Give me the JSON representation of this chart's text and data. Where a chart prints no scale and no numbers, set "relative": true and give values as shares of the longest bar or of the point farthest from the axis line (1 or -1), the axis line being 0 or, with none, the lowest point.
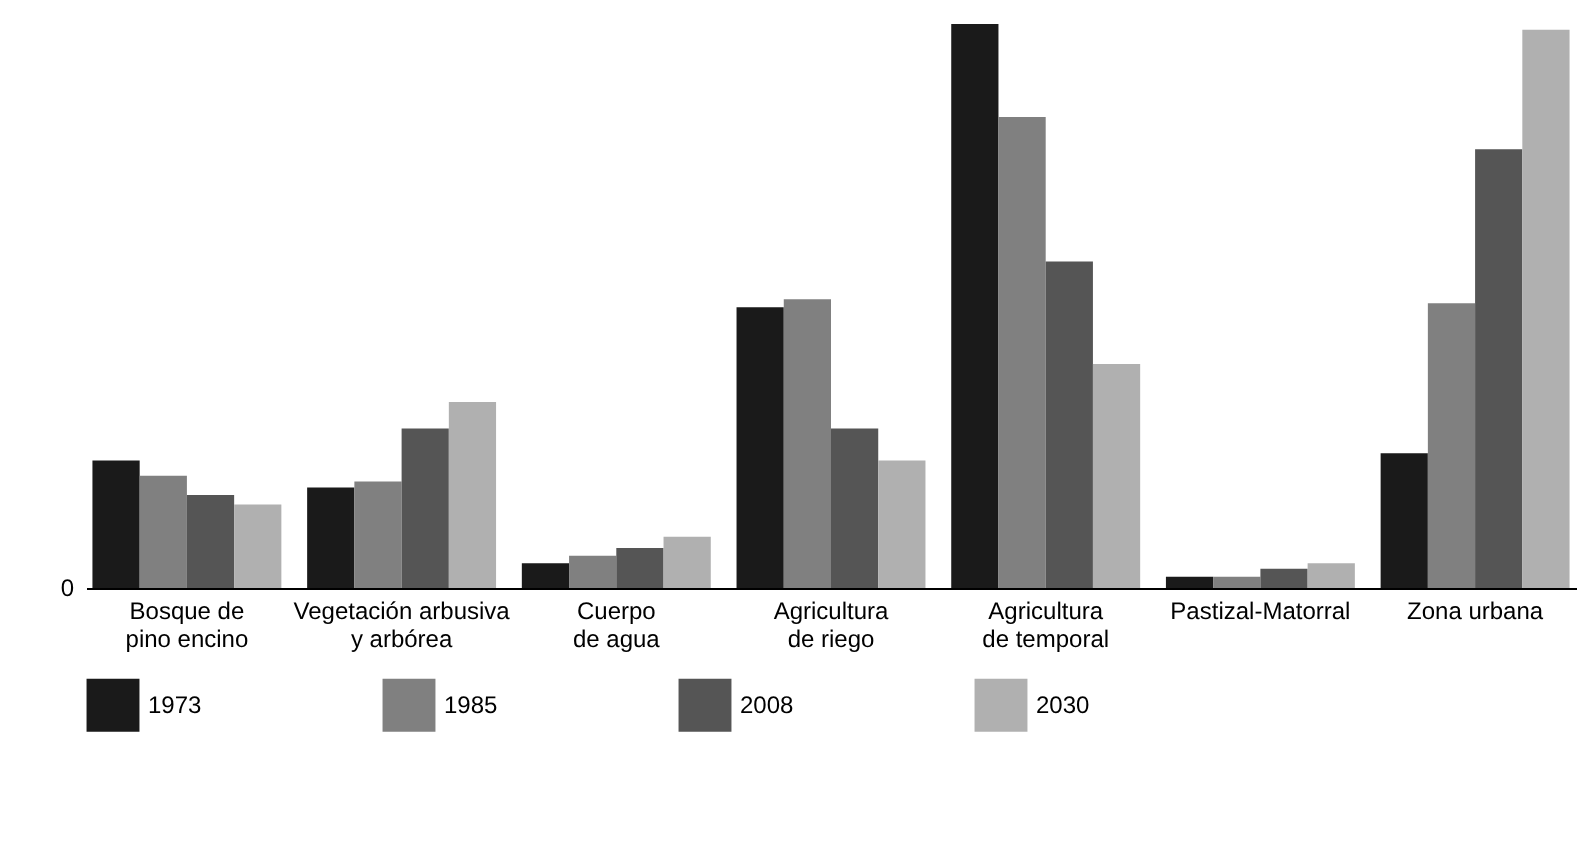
{
  "chart_data": {
    "type": "bar",
    "relative": true,
    "categories": [
      "Bosque de\npino encino",
      "Vegetación arbusiva\ny arbórea",
      "Cuerpo\nde agua",
      "Agricultura\nde riego",
      "Agricultura\nde temporal",
      "Pastizal-Matorral",
      "Zona urbana"
    ],
    "series": [
      {
        "name": "1973",
        "color": "#1a1a1a",
        "values": [
          0.226,
          0.178,
          0.044,
          0.498,
          1,
          0.02,
          0.239
        ]
      },
      {
        "name": "1985",
        "color": "#808080",
        "values": [
          0.199,
          0.189,
          0.057,
          0.512,
          0.835,
          0.02,
          0.505
        ]
      },
      {
        "name": "2008",
        "color": "#555555",
        "values": [
          0.165,
          0.283,
          0.071,
          0.283,
          0.579,
          0.034,
          0.778
        ]
      },
      {
        "name": "2030",
        "color": "#b0b0b0",
        "values": [
          0.148,
          0.33,
          0.091,
          0.226,
          0.397,
          0.044,
          0.99
        ]
      }
    ],
    "annotations": [
      "0"
    ],
    "legend": "bottom"
  }
}
